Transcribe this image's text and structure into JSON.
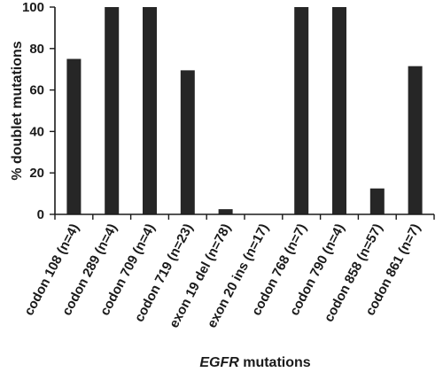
{
  "chart_data": {
    "type": "bar",
    "categories": [
      "codon 108 (n=4)",
      "codon 289 (n=4)",
      "codon 709 (n=4)",
      "codon 719 (n=23)",
      "exon 19 del (n=78)",
      "exon 20 ins (n=17)",
      "codon 768 (n=7)",
      "codon 790 (n=4)",
      "codon 858 (n=57)",
      "codon 861 (n=7)"
    ],
    "values": [
      75,
      100,
      100,
      69.5,
      2.5,
      0,
      100,
      100,
      12.5,
      71.5
    ],
    "ylabel": "% doublet mutations",
    "xlabel_italic": "EGFR",
    "xlabel_rest": " mutations",
    "ylim": [
      0,
      100
    ],
    "yticks": [
      "0",
      "20",
      "40",
      "60",
      "80",
      "100"
    ],
    "grid": false,
    "legend": "none",
    "bar_color": "#262626"
  }
}
